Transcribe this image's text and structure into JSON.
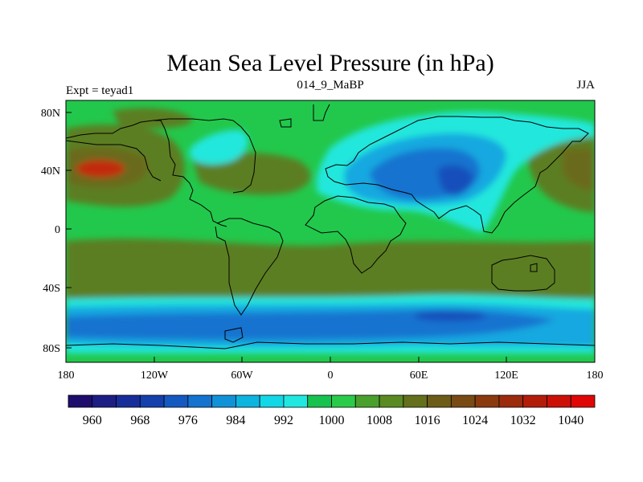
{
  "title": "Mean Sea Level Pressure (in hPa)",
  "left_label": "Expt = teyad1",
  "center_label": "014_9_MaBP",
  "right_label": "JJA",
  "lat_ticks": [
    "80N",
    "40N",
    "0",
    "40S",
    "80S"
  ],
  "lon_ticks": [
    "180",
    "120W",
    "60W",
    "0",
    "60E",
    "120E",
    "180"
  ],
  "colorbar": {
    "labels": [
      "960",
      "968",
      "976",
      "984",
      "992",
      "1000",
      "1008",
      "1016",
      "1024",
      "1032",
      "1040"
    ],
    "colors": [
      "#1f0d6e",
      "#1d1e84",
      "#172e9a",
      "#1340ad",
      "#1459c0",
      "#1373cf",
      "#1192d8",
      "#0eb4e0",
      "#12d7e7",
      "#20e8e0",
      "#17c24f",
      "#2bcb4a",
      "#4aa02c",
      "#5a8a22",
      "#64701c",
      "#6d5c18",
      "#7a4a14",
      "#8b3a10",
      "#9c2a0c",
      "#b41c0a",
      "#cc1008",
      "#e00606"
    ]
  },
  "map_colors": {
    "ocean_green": "#22c84c",
    "light_green": "#4fbb3a",
    "olive": "#5c7e22",
    "dark_olive": "#6b6a1c",
    "brown": "#8a4a16",
    "red": "#c22a0c",
    "cyan": "#20e7dc",
    "light_blue": "#12a8e0",
    "mid_blue": "#1473cf",
    "deep_blue": "#1650bb"
  }
}
